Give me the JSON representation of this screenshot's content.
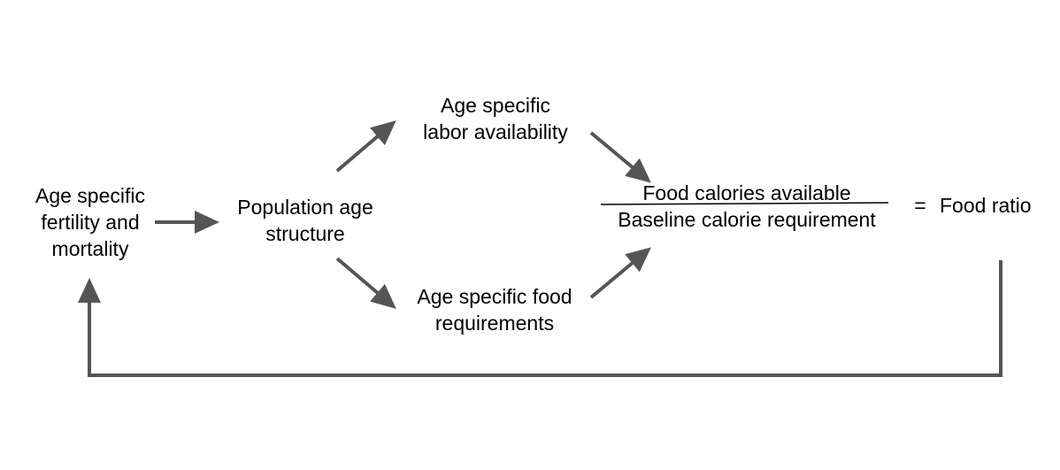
{
  "nodes": {
    "fertility": {
      "line1": "Age specific",
      "line2": "fertility and",
      "line3": "mortality"
    },
    "population": {
      "line1": "Population age",
      "line2": "structure"
    },
    "labor": {
      "line1": "Age specific",
      "line2": "labor availability"
    },
    "food_requirements": {
      "line1": "Age specific food",
      "line2": "requirements"
    },
    "fraction": {
      "numerator": "Food calories available",
      "denominator": "Baseline calorie requirement"
    },
    "equals": "=",
    "food_ratio": "Food ratio"
  },
  "colors": {
    "arrow": "#555555",
    "text": "#000000",
    "fraction_bar": "#000000"
  }
}
